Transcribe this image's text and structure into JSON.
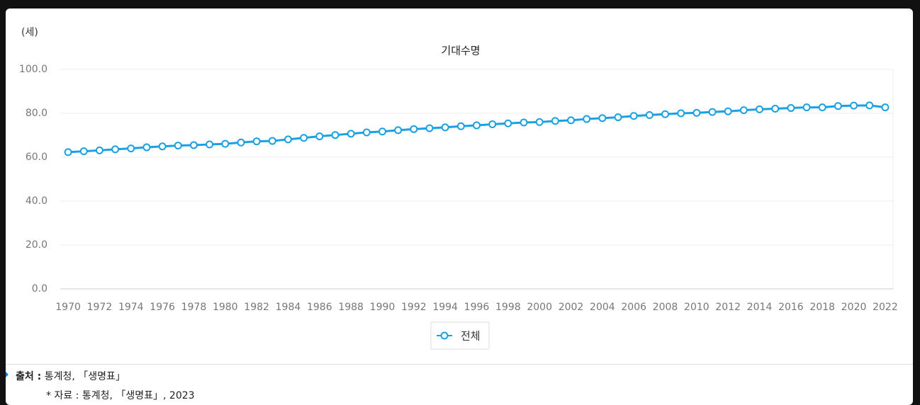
{
  "chart_data": {
    "type": "line",
    "title": "기대수명",
    "y_unit": "(세)",
    "categories": [
      "1970",
      null,
      "1972",
      null,
      "1974",
      null,
      "1976",
      null,
      "1978",
      null,
      "1980",
      null,
      "1982",
      null,
      "1984",
      null,
      "1986",
      null,
      "1988",
      null,
      "1990",
      null,
      "1992",
      null,
      "1994",
      null,
      "1996",
      null,
      "1998",
      null,
      "2000",
      null,
      "2002",
      null,
      "2004",
      null,
      "2006",
      null,
      "2008",
      null,
      "2010",
      null,
      "2012",
      null,
      "2014",
      null,
      "2016",
      null,
      "2018",
      null,
      "2020",
      null,
      "2022"
    ],
    "series": [
      {
        "name": "전체",
        "color": "#1ba1e2",
        "values": [
          62.3,
          62.7,
          63.1,
          63.6,
          64.0,
          64.5,
          64.9,
          65.3,
          65.5,
          65.8,
          66.1,
          66.7,
          67.2,
          67.4,
          68.1,
          68.8,
          69.5,
          70.1,
          70.7,
          71.3,
          71.7,
          72.3,
          72.8,
          73.2,
          73.6,
          74.1,
          74.5,
          75.0,
          75.4,
          75.8,
          76.0,
          76.5,
          76.8,
          77.4,
          77.8,
          78.2,
          78.8,
          79.2,
          79.6,
          80.0,
          80.2,
          80.6,
          80.9,
          81.4,
          81.8,
          82.1,
          82.4,
          82.7,
          82.7,
          83.3,
          83.5,
          83.6,
          82.7
        ]
      }
    ],
    "ylim": [
      0,
      100
    ],
    "yticks": [
      {
        "value": 0,
        "label": "0.0"
      },
      {
        "value": 20,
        "label": "20.0"
      },
      {
        "value": 40,
        "label": "40.0"
      },
      {
        "value": 60,
        "label": "60.0"
      },
      {
        "value": 80,
        "label": "80.0"
      },
      {
        "value": 100,
        "label": "100.0"
      }
    ],
    "grid": true,
    "legend": "bottom"
  },
  "source": {
    "label": "출처 :",
    "text": "통계청, 「생명표」",
    "note": "* 자료 : 통계청, 「생명표」, 2023"
  }
}
